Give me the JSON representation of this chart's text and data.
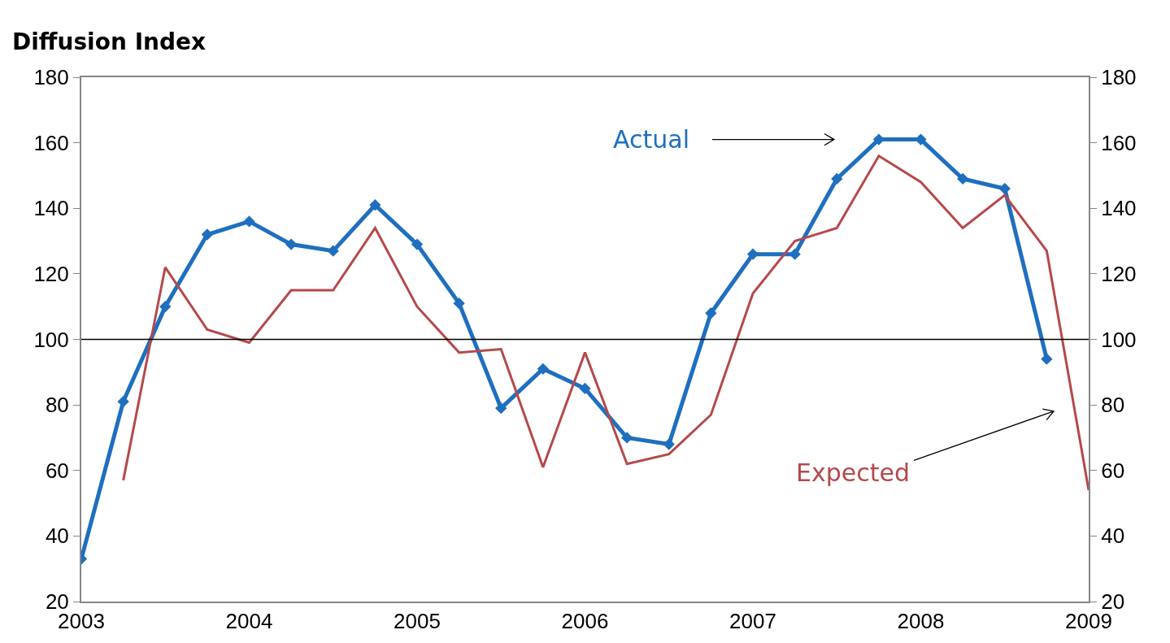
{
  "chart_data": {
    "type": "line",
    "ylabel": "Diffusion Index",
    "series": [
      {
        "name": "Actual",
        "color": "#1f6fbf",
        "marker": "diamond",
        "x": [
          2003,
          2003.25,
          2003.5,
          2003.75,
          2004,
          2004.25,
          2004.5,
          2004.75,
          2005,
          2005.25,
          2005.5,
          2005.75,
          2006,
          2006.25,
          2006.5,
          2006.75,
          2007,
          2007.25,
          2007.5,
          2007.75,
          2008,
          2008.25,
          2008.5,
          2008.75
        ],
        "values": [
          33,
          81,
          110,
          132,
          136,
          129,
          127,
          141,
          129,
          111,
          79,
          91,
          85,
          70,
          68,
          108,
          126,
          126,
          149,
          161,
          161,
          149,
          146,
          94
        ]
      },
      {
        "name": "Expected",
        "color": "#b5494b",
        "marker": "none",
        "x": [
          2003.25,
          2003.5,
          2003.75,
          2004,
          2004.25,
          2004.5,
          2004.75,
          2005,
          2005.25,
          2005.5,
          2005.75,
          2006,
          2006.25,
          2006.5,
          2006.75,
          2007,
          2007.25,
          2007.5,
          2007.75,
          2008,
          2008.25,
          2008.5,
          2008.75,
          2009
        ],
        "values": [
          57,
          122,
          103,
          99,
          115,
          115,
          134,
          110,
          96,
          97,
          61,
          96,
          62,
          65,
          77,
          114,
          130,
          134,
          156,
          148,
          134,
          144,
          127,
          54
        ]
      }
    ],
    "xlim": [
      2003,
      2009
    ],
    "xticks": [
      2003,
      2004,
      2005,
      2006,
      2007,
      2008,
      2009
    ],
    "ylim": [
      20,
      180
    ],
    "yticks": [
      20,
      40,
      60,
      80,
      100,
      120,
      140,
      160,
      180
    ],
    "y2lim": [
      20,
      180
    ],
    "y2ticks": [
      20,
      40,
      60,
      80,
      100,
      120,
      140,
      160,
      180
    ],
    "ref_lines": [
      {
        "axis": "y",
        "value": 100,
        "color": "#000000"
      }
    ],
    "legend": false,
    "line_style": "solid"
  }
}
